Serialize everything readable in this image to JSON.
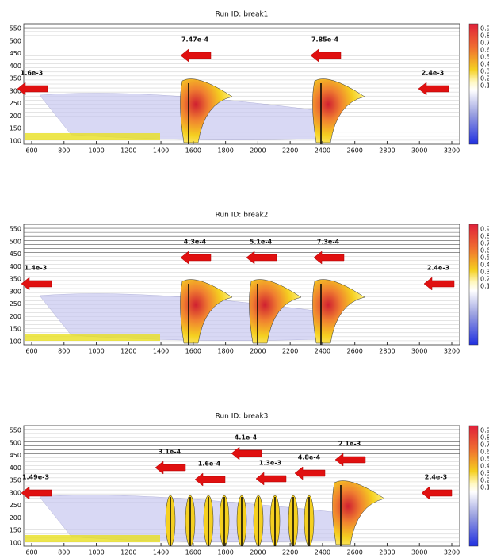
{
  "panels": [
    {
      "title": "Run ID: break1",
      "arrow_labels": [
        "1.6e-3",
        "7.47e-4",
        "7.85e-4",
        "2.4e-3"
      ]
    },
    {
      "title": "Run ID: break2",
      "arrow_labels": [
        "1.4e-3",
        "4.3e-4",
        "5.1e-4",
        "7.3e-4",
        "2.4e-3"
      ]
    },
    {
      "title": "Run ID: break3",
      "arrow_labels": [
        "1.49e-3",
        "3.1e-4",
        "1.6e-4",
        "4.1e-4",
        "1.3e-3",
        "4.8e-4",
        "2.1e-3",
        "2.4e-3"
      ]
    }
  ],
  "x_ticks": [
    600,
    800,
    1000,
    1200,
    1400,
    1600,
    1800,
    2000,
    2200,
    2400,
    2600,
    2800,
    3000,
    3200
  ],
  "y_ticks": [
    550,
    500,
    450,
    400,
    350,
    300,
    250,
    200,
    150,
    100
  ],
  "colorbar_ticks": [
    0.9,
    0.8,
    0.7,
    0.6,
    0.5,
    0.4,
    0.3,
    0.2,
    0.1
  ]
}
